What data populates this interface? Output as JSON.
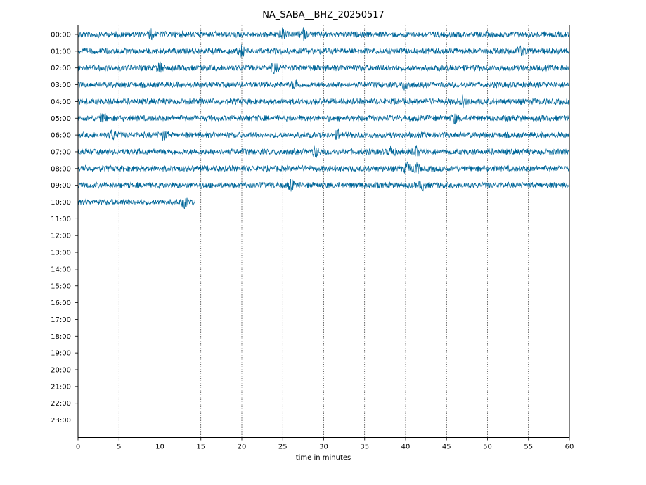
{
  "chart_data": {
    "type": "line",
    "title": "NA_SABA__BHZ_20250517",
    "xlabel": "time in minutes",
    "ylabel": "",
    "xlim": [
      0,
      60
    ],
    "x_ticks": [
      0,
      5,
      10,
      15,
      20,
      25,
      30,
      35,
      40,
      45,
      50,
      55,
      60
    ],
    "x_tick_labels": [
      "0",
      "5",
      "10",
      "15",
      "20",
      "25",
      "30",
      "35",
      "40",
      "45",
      "50",
      "55",
      "60"
    ],
    "grid": "vertical dotted lines at every 5 minutes",
    "trace_color": "#006699",
    "y_tick_labels": [
      "00:00",
      "01:00",
      "02:00",
      "03:00",
      "04:00",
      "05:00",
      "06:00",
      "07:00",
      "08:00",
      "09:00",
      "10:00",
      "11:00",
      "12:00",
      "13:00",
      "14:00",
      "15:00",
      "16:00",
      "17:00",
      "18:00",
      "19:00",
      "20:00",
      "21:00",
      "22:00",
      "23:00"
    ],
    "series": [
      {
        "hour": "00:00",
        "start_min": 0,
        "end_min": 60,
        "events_min": [
          9,
          25,
          27.5
        ]
      },
      {
        "hour": "01:00",
        "start_min": 0,
        "end_min": 60,
        "events_min": [
          20,
          54
        ]
      },
      {
        "hour": "02:00",
        "start_min": 0,
        "end_min": 60,
        "events_min": [
          10,
          24
        ]
      },
      {
        "hour": "03:00",
        "start_min": 0,
        "end_min": 60,
        "events_min": [
          26.5,
          40
        ]
      },
      {
        "hour": "04:00",
        "start_min": 0,
        "end_min": 60,
        "events_min": [
          47
        ]
      },
      {
        "hour": "05:00",
        "start_min": 0,
        "end_min": 60,
        "events_min": [
          3,
          46
        ]
      },
      {
        "hour": "06:00",
        "start_min": 0,
        "end_min": 60,
        "events_min": [
          4.2,
          10.5,
          31.8
        ]
      },
      {
        "hour": "07:00",
        "start_min": 0,
        "end_min": 60,
        "events_min": [
          29,
          38.3,
          41.3
        ]
      },
      {
        "hour": "08:00",
        "start_min": 0,
        "end_min": 60,
        "events_min": [
          40.2,
          41.3
        ]
      },
      {
        "hour": "09:00",
        "start_min": 0,
        "end_min": 60,
        "events_min": [
          26,
          42
        ]
      },
      {
        "hour": "10:00",
        "start_min": 0,
        "end_min": 14.3,
        "events_min": [
          13
        ]
      }
    ]
  }
}
